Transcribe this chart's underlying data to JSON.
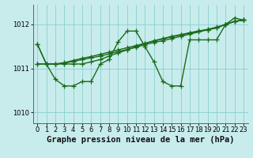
{
  "xlabel": "Graphe pression niveau de la mer (hPa)",
  "background_color": "#c8ecec",
  "grid_color": "#88d0d0",
  "line_color": "#1a6b1a",
  "ylim": [
    1009.75,
    1012.45
  ],
  "xlim": [
    -0.5,
    23.5
  ],
  "yticks": [
    1010,
    1011,
    1012
  ],
  "xticks": [
    0,
    1,
    2,
    3,
    4,
    5,
    6,
    7,
    8,
    9,
    10,
    11,
    12,
    13,
    14,
    15,
    16,
    17,
    18,
    19,
    20,
    21,
    22,
    23
  ],
  "series_jagged": [
    1011.55,
    1011.1,
    1010.75,
    1010.6,
    1010.6,
    1010.7,
    1010.7,
    1011.1,
    1011.2,
    1011.6,
    1011.85,
    1011.85,
    1011.5,
    1011.15,
    1010.7,
    1010.6,
    1010.6,
    1011.65,
    1011.65,
    1011.65,
    1011.65,
    1012.0,
    1012.15,
    1012.1
  ],
  "series_diag1": [
    1011.1,
    1011.1,
    1011.1,
    1011.12,
    1011.16,
    1011.2,
    1011.24,
    1011.28,
    1011.33,
    1011.38,
    1011.43,
    1011.48,
    1011.54,
    1011.59,
    1011.63,
    1011.68,
    1011.73,
    1011.78,
    1011.83,
    1011.88,
    1011.93,
    1012.0,
    1012.07,
    1012.1
  ],
  "series_diag2": [
    1011.1,
    1011.1,
    1011.1,
    1011.13,
    1011.18,
    1011.23,
    1011.27,
    1011.32,
    1011.37,
    1011.42,
    1011.47,
    1011.52,
    1011.57,
    1011.62,
    1011.67,
    1011.72,
    1011.76,
    1011.81,
    1011.85,
    1011.89,
    1011.94,
    1012.0,
    1012.07,
    1012.1
  ],
  "series_diag3": [
    1011.55,
    1011.1,
    1011.1,
    1011.1,
    1011.1,
    1011.1,
    1011.15,
    1011.2,
    1011.28,
    1011.35,
    1011.42,
    1011.5,
    1011.57,
    1011.63,
    1011.68,
    1011.73,
    1011.77,
    1011.81,
    1011.85,
    1011.88,
    1011.92,
    1012.0,
    1012.07,
    1012.1
  ],
  "marker_size": 4,
  "line_width": 1.0,
  "tick_fontsize": 6,
  "xlabel_fontsize": 7.5
}
